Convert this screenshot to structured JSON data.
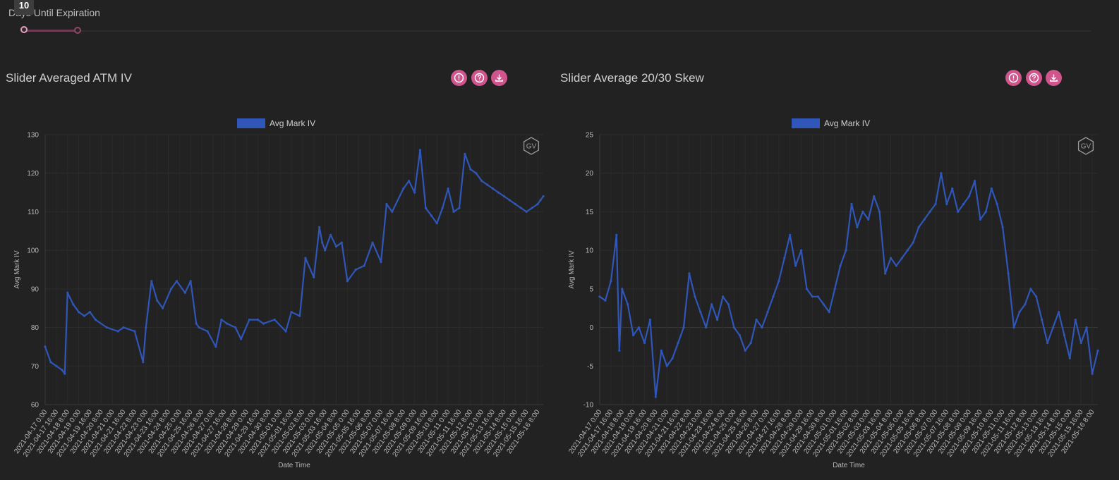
{
  "slider": {
    "label": "Days Until Expiration",
    "value": "10",
    "range": [
      10,
      30
    ]
  },
  "colors": {
    "series": "#2f56b8",
    "accent": "#d0558c"
  },
  "panels": [
    {
      "title": "Slider Averaged ATM IV",
      "icons": [
        "info-icon",
        "help-icon",
        "download-icon"
      ],
      "watermark": "GV"
    },
    {
      "title": "Slider Average 20/30 Skew",
      "icons": [
        "info-icon",
        "help-icon",
        "download-icon"
      ],
      "watermark": "GV"
    }
  ],
  "chart_data": [
    {
      "type": "line",
      "legend": "Avg Mark IV",
      "xlabel": "Date Time",
      "ylabel": "Avg Mark IV",
      "ylim": [
        60,
        130
      ],
      "yticks": [
        60,
        70,
        80,
        90,
        100,
        110,
        120,
        130
      ],
      "x_range": [
        "2021-04-17 00:00",
        "2021-05-16 16:00"
      ],
      "xticks": [
        "2021-04-17 0:00",
        "2021-04-17 16:00",
        "2021-04-18 8:00",
        "2021-04-19 0:00",
        "2021-04-19 16:00",
        "2021-04-20 8:00",
        "2021-04-21 0:00",
        "2021-04-21 16:00",
        "2021-04-22 8:00",
        "2021-04-23 0:00",
        "2021-04-23 16:00",
        "2021-04-24 8:00",
        "2021-04-25 0:00",
        "2021-04-25 16:00",
        "2021-04-26 8:00",
        "2021-04-27 0:00",
        "2021-04-27 16:00",
        "2021-04-28 8:00",
        "2021-04-29 0:00",
        "2021-04-29 16:00",
        "2021-04-30 8:00",
        "2021-05-01 0:00",
        "2021-05-01 16:00",
        "2021-05-02 8:00",
        "2021-05-03 0:00",
        "2021-05-03 16:00",
        "2021-05-04 8:00",
        "2021-05-05 0:00",
        "2021-05-05 16:00",
        "2021-05-06 8:00",
        "2021-05-07 0:00",
        "2021-05-07 16:00",
        "2021-05-08 8:00",
        "2021-05-09 0:00",
        "2021-05-09 16:00",
        "2021-05-10 8:00",
        "2021-05-11 0:00",
        "2021-05-11 16:00",
        "2021-05-12 8:00",
        "2021-05-13 0:00",
        "2021-05-13 16:00",
        "2021-05-14 8:00",
        "2021-05-15 0:00",
        "2021-05-15 16:00",
        "2021-05-16 8:00"
      ],
      "x": [
        "2021-04-17 00:00",
        "2021-04-17 08:00",
        "2021-04-17 16:00",
        "2021-04-18 00:00",
        "2021-04-18 04:00",
        "2021-04-18 08:00",
        "2021-04-18 16:00",
        "2021-04-19 00:00",
        "2021-04-19 08:00",
        "2021-04-19 16:00",
        "2021-04-20 00:00",
        "2021-04-20 16:00",
        "2021-04-21 08:00",
        "2021-04-21 16:00",
        "2021-04-22 08:00",
        "2021-04-22 20:00",
        "2021-04-23 00:00",
        "2021-04-23 08:00",
        "2021-04-23 16:00",
        "2021-04-24 00:00",
        "2021-04-24 12:00",
        "2021-04-24 20:00",
        "2021-04-25 08:00",
        "2021-04-25 16:00",
        "2021-04-26 00:00",
        "2021-04-26 04:00",
        "2021-04-26 16:00",
        "2021-04-27 04:00",
        "2021-04-27 12:00",
        "2021-04-27 20:00",
        "2021-04-28 08:00",
        "2021-04-28 16:00",
        "2021-04-29 04:00",
        "2021-04-29 16:00",
        "2021-04-30 00:00",
        "2021-04-30 16:00",
        "2021-05-01 08:00",
        "2021-05-01 16:00",
        "2021-05-02 04:00",
        "2021-05-02 12:00",
        "2021-05-03 00:00",
        "2021-05-03 08:00",
        "2021-05-03 12:00",
        "2021-05-03 16:00",
        "2021-05-04 00:00",
        "2021-05-04 08:00",
        "2021-05-04 16:00",
        "2021-05-05 00:00",
        "2021-05-05 12:00",
        "2021-05-06 00:00",
        "2021-05-06 12:00",
        "2021-05-07 00:00",
        "2021-05-07 08:00",
        "2021-05-07 16:00",
        "2021-05-08 08:00",
        "2021-05-08 16:00",
        "2021-05-09 00:00",
        "2021-05-09 08:00",
        "2021-05-09 16:00",
        "2021-05-10 00:00",
        "2021-05-10 08:00",
        "2021-05-10 16:00",
        "2021-05-11 00:00",
        "2021-05-11 08:00",
        "2021-05-11 16:00",
        "2021-05-12 00:00",
        "2021-05-12 08:00",
        "2021-05-12 16:00",
        "2021-05-13 00:00",
        "2021-05-13 08:00",
        "2021-05-13 16:00",
        "2021-05-14 00:00",
        "2021-05-14 08:00",
        "2021-05-14 16:00",
        "2021-05-15 00:00",
        "2021-05-15 08:00",
        "2021-05-15 16:00",
        "2021-05-16 00:00",
        "2021-05-16 08:00",
        "2021-05-16 12:00",
        "2021-05-16 16:00"
      ],
      "values": [
        75,
        71,
        70,
        69,
        68,
        89,
        86,
        84,
        83,
        84,
        82,
        80,
        79,
        80,
        79,
        71,
        80,
        92,
        87,
        85,
        90,
        92,
        89,
        92,
        81,
        80,
        79,
        75,
        82,
        81,
        80,
        77,
        82,
        82,
        81,
        82,
        79,
        84,
        83,
        98,
        93,
        106,
        102,
        100,
        104,
        101,
        102,
        92,
        95,
        96,
        102,
        97,
        112,
        110,
        116,
        118,
        115,
        126,
        111,
        109,
        107,
        111,
        116,
        110,
        111,
        125,
        121,
        120,
        118,
        117,
        116,
        115,
        114,
        113,
        112,
        111,
        110,
        111,
        112,
        113,
        114
      ]
    },
    {
      "type": "line",
      "legend": "Avg Mark IV",
      "xlabel": "Date Time",
      "ylabel": "Avg Mark IV",
      "ylim": [
        -10,
        25
      ],
      "yticks": [
        -10,
        -5,
        0,
        5,
        10,
        15,
        20,
        25
      ],
      "x_range": [
        "2021-04-17 00:00",
        "2021-05-16 16:00"
      ],
      "xticks": [
        "2021-04-17 0:00",
        "2021-04-17 16:00",
        "2021-04-18 8:00",
        "2021-04-19 0:00",
        "2021-04-19 16:00",
        "2021-04-20 8:00",
        "2021-04-21 0:00",
        "2021-04-21 16:00",
        "2021-04-22 8:00",
        "2021-04-23 0:00",
        "2021-04-23 16:00",
        "2021-04-24 8:00",
        "2021-04-25 0:00",
        "2021-04-25 16:00",
        "2021-04-26 8:00",
        "2021-04-27 0:00",
        "2021-04-27 16:00",
        "2021-04-28 8:00",
        "2021-04-29 0:00",
        "2021-04-29 16:00",
        "2021-04-30 8:00",
        "2021-05-01 0:00",
        "2021-05-01 16:00",
        "2021-05-02 8:00",
        "2021-05-03 0:00",
        "2021-05-03 16:00",
        "2021-05-04 8:00",
        "2021-05-05 0:00",
        "2021-05-05 16:00",
        "2021-05-06 8:00",
        "2021-05-07 0:00",
        "2021-05-07 16:00",
        "2021-05-08 8:00",
        "2021-05-09 0:00",
        "2021-05-09 16:00",
        "2021-05-10 8:00",
        "2021-05-11 0:00",
        "2021-05-11 16:00",
        "2021-05-12 8:00",
        "2021-05-13 0:00",
        "2021-05-13 16:00",
        "2021-05-14 8:00",
        "2021-05-15 0:00",
        "2021-05-15 16:00",
        "2021-05-16 8:00"
      ],
      "x": [
        "2021-04-17 00:00",
        "2021-04-17 08:00",
        "2021-04-17 16:00",
        "2021-04-18 00:00",
        "2021-04-18 04:00",
        "2021-04-18 08:00",
        "2021-04-18 16:00",
        "2021-04-19 00:00",
        "2021-04-19 08:00",
        "2021-04-19 16:00",
        "2021-04-20 00:00",
        "2021-04-20 08:00",
        "2021-04-20 16:00",
        "2021-04-21 00:00",
        "2021-04-21 08:00",
        "2021-04-21 16:00",
        "2021-04-22 00:00",
        "2021-04-22 08:00",
        "2021-04-22 16:00",
        "2021-04-23 00:00",
        "2021-04-23 08:00",
        "2021-04-23 16:00",
        "2021-04-24 00:00",
        "2021-04-24 08:00",
        "2021-04-24 16:00",
        "2021-04-25 00:00",
        "2021-04-25 08:00",
        "2021-04-25 16:00",
        "2021-04-26 00:00",
        "2021-04-26 08:00",
        "2021-04-26 16:00",
        "2021-04-27 00:00",
        "2021-04-27 08:00",
        "2021-04-27 16:00",
        "2021-04-28 00:00",
        "2021-04-28 08:00",
        "2021-04-28 16:00",
        "2021-04-29 00:00",
        "2021-04-29 08:00",
        "2021-04-29 16:00",
        "2021-04-30 00:00",
        "2021-04-30 08:00",
        "2021-04-30 16:00",
        "2021-05-01 00:00",
        "2021-05-01 08:00",
        "2021-05-01 16:00",
        "2021-05-02 00:00",
        "2021-05-02 08:00",
        "2021-05-02 16:00",
        "2021-05-03 00:00",
        "2021-05-03 08:00",
        "2021-05-03 16:00",
        "2021-05-04 00:00",
        "2021-05-04 08:00",
        "2021-05-04 16:00",
        "2021-05-05 00:00",
        "2021-05-05 08:00",
        "2021-05-05 16:00",
        "2021-05-06 00:00",
        "2021-05-06 08:00",
        "2021-05-06 16:00",
        "2021-05-07 00:00",
        "2021-05-07 08:00",
        "2021-05-07 16:00",
        "2021-05-08 00:00",
        "2021-05-08 08:00",
        "2021-05-08 16:00",
        "2021-05-09 00:00",
        "2021-05-09 08:00",
        "2021-05-09 16:00",
        "2021-05-10 00:00",
        "2021-05-10 08:00",
        "2021-05-10 16:00",
        "2021-05-11 00:00",
        "2021-05-11 08:00",
        "2021-05-11 16:00",
        "2021-05-12 00:00",
        "2021-05-12 08:00",
        "2021-05-12 16:00",
        "2021-05-13 00:00",
        "2021-05-13 08:00",
        "2021-05-13 16:00",
        "2021-05-14 00:00",
        "2021-05-14 08:00",
        "2021-05-14 16:00",
        "2021-05-15 00:00",
        "2021-05-15 08:00",
        "2021-05-15 16:00",
        "2021-05-16 00:00",
        "2021-05-16 08:00",
        "2021-05-16 16:00"
      ],
      "values": [
        4,
        3.5,
        6,
        12,
        -3,
        5,
        3,
        -1,
        0,
        -2,
        1,
        -9,
        -3,
        -5,
        -4,
        -2,
        0,
        7,
        4,
        2,
        0,
        3,
        1,
        4,
        3,
        0,
        -1,
        -3,
        -2,
        1,
        0,
        2,
        4,
        6,
        9,
        12,
        8,
        10,
        5,
        4,
        4,
        3,
        2,
        5,
        8,
        10,
        16,
        13,
        15,
        14,
        17,
        15,
        7,
        9,
        8,
        9,
        10,
        11,
        13,
        14,
        15,
        16,
        20,
        16,
        18,
        15,
        16,
        17,
        19,
        14,
        15,
        18,
        16,
        13,
        7,
        0,
        2,
        3,
        5,
        4,
        1,
        -2,
        0,
        2,
        -1,
        -4,
        1,
        -2,
        0,
        -6,
        -3
      ]
    }
  ]
}
